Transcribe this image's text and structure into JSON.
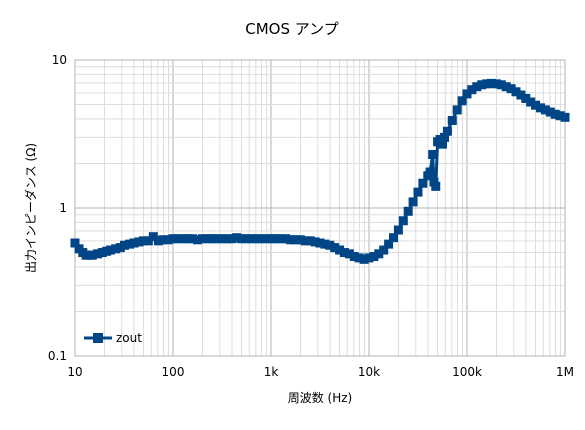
{
  "chart_data": {
    "type": "line",
    "title": "CMOS アンプ",
    "xlabel": "周波数 (Hz)",
    "ylabel": "出力インピーダンス (Ω)",
    "xscale": "log",
    "yscale": "log",
    "xlim": [
      10,
      1000000
    ],
    "ylim": [
      0.1,
      10
    ],
    "x_tick_values": [
      10,
      100,
      1000,
      10000,
      100000,
      1000000
    ],
    "x_tick_labels": [
      "10",
      "100",
      "1k",
      "10k",
      "100k",
      "1M"
    ],
    "y_tick_values": [
      0.1,
      1,
      10
    ],
    "y_tick_labels": [
      "0.1",
      "1",
      "10"
    ],
    "grid": true,
    "minor_grid": true,
    "legend_position": "bottom-left",
    "series": [
      {
        "name": "zout",
        "color": "#004586",
        "marker": "square",
        "points": [
          [
            10,
            0.58
          ],
          [
            11,
            0.53
          ],
          [
            12,
            0.5
          ],
          [
            13,
            0.48
          ],
          [
            14,
            0.48
          ],
          [
            15,
            0.48
          ],
          [
            17,
            0.49
          ],
          [
            19,
            0.5
          ],
          [
            21,
            0.51
          ],
          [
            23,
            0.52
          ],
          [
            26,
            0.53
          ],
          [
            29,
            0.54
          ],
          [
            32,
            0.56
          ],
          [
            36,
            0.57
          ],
          [
            40,
            0.58
          ],
          [
            45,
            0.59
          ],
          [
            50,
            0.6
          ],
          [
            56,
            0.6
          ],
          [
            63,
            0.64
          ],
          [
            71,
            0.6
          ],
          [
            79,
            0.61
          ],
          [
            89,
            0.61
          ],
          [
            100,
            0.62
          ],
          [
            112,
            0.62
          ],
          [
            126,
            0.62
          ],
          [
            141,
            0.62
          ],
          [
            158,
            0.62
          ],
          [
            178,
            0.61
          ],
          [
            200,
            0.62
          ],
          [
            224,
            0.62
          ],
          [
            251,
            0.62
          ],
          [
            282,
            0.62
          ],
          [
            316,
            0.62
          ],
          [
            355,
            0.62
          ],
          [
            398,
            0.62
          ],
          [
            447,
            0.63
          ],
          [
            501,
            0.62
          ],
          [
            562,
            0.62
          ],
          [
            631,
            0.62
          ],
          [
            708,
            0.62
          ],
          [
            794,
            0.62
          ],
          [
            891,
            0.62
          ],
          [
            1000,
            0.62
          ],
          [
            1122,
            0.62
          ],
          [
            1259,
            0.62
          ],
          [
            1413,
            0.62
          ],
          [
            1585,
            0.61
          ],
          [
            1778,
            0.61
          ],
          [
            1995,
            0.61
          ],
          [
            2239,
            0.6
          ],
          [
            2512,
            0.6
          ],
          [
            2818,
            0.59
          ],
          [
            3162,
            0.58
          ],
          [
            3548,
            0.57
          ],
          [
            3981,
            0.56
          ],
          [
            4467,
            0.54
          ],
          [
            5012,
            0.52
          ],
          [
            5623,
            0.5
          ],
          [
            6310,
            0.49
          ],
          [
            7079,
            0.47
          ],
          [
            7943,
            0.46
          ],
          [
            8913,
            0.45
          ],
          [
            10000,
            0.46
          ],
          [
            11220,
            0.47
          ],
          [
            12589,
            0.49
          ],
          [
            14125,
            0.52
          ],
          [
            15849,
            0.57
          ],
          [
            17783,
            0.63
          ],
          [
            19953,
            0.71
          ],
          [
            22387,
            0.82
          ],
          [
            25119,
            0.95
          ],
          [
            28184,
            1.1
          ],
          [
            31623,
            1.28
          ],
          [
            35481,
            1.47
          ],
          [
            39811,
            1.65
          ],
          [
            42000,
            1.75
          ],
          [
            44668,
            2.3
          ],
          [
            46000,
            1.5
          ],
          [
            48000,
            1.4
          ],
          [
            50119,
            2.8
          ],
          [
            53000,
            2.9
          ],
          [
            56234,
            2.7
          ],
          [
            59000,
            3.0
          ],
          [
            63096,
            3.3
          ],
          [
            70795,
            3.9
          ],
          [
            79433,
            4.6
          ],
          [
            89125,
            5.3
          ],
          [
            100000,
            5.9
          ],
          [
            112202,
            6.3
          ],
          [
            125893,
            6.6
          ],
          [
            141254,
            6.8
          ],
          [
            158489,
            6.9
          ],
          [
            177828,
            6.95
          ],
          [
            199526,
            6.9
          ],
          [
            223872,
            6.8
          ],
          [
            251189,
            6.6
          ],
          [
            281838,
            6.4
          ],
          [
            316228,
            6.1
          ],
          [
            354813,
            5.8
          ],
          [
            398107,
            5.5
          ],
          [
            446684,
            5.2
          ],
          [
            501187,
            4.95
          ],
          [
            562341,
            4.75
          ],
          [
            630957,
            4.6
          ],
          [
            707946,
            4.45
          ],
          [
            794328,
            4.3
          ],
          [
            891251,
            4.2
          ],
          [
            1000000,
            4.1
          ]
        ]
      }
    ]
  }
}
